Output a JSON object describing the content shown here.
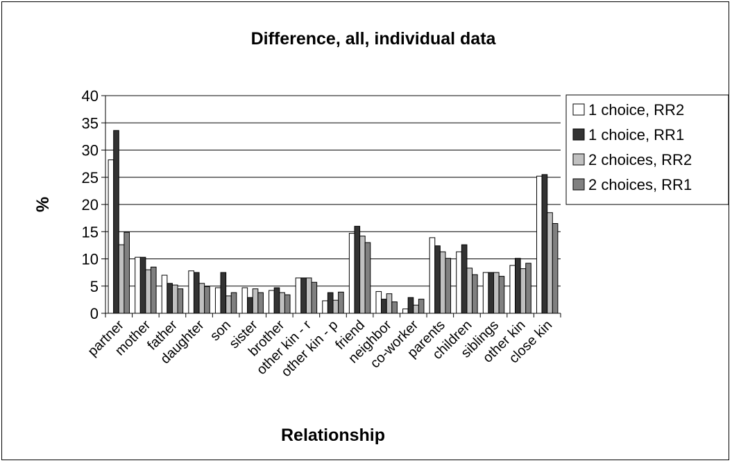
{
  "chart_data": {
    "type": "bar",
    "title": "Difference, all, individual data",
    "xlabel": "Relationship",
    "ylabel": "%",
    "ylim": [
      0,
      40
    ],
    "yticks": [
      0,
      5,
      10,
      15,
      20,
      25,
      30,
      35,
      40
    ],
    "grid": true,
    "legend_position": "right",
    "categories": [
      "partner",
      "mother",
      "father",
      "daughter",
      "son",
      "sister",
      "brother",
      "other kin - r",
      "other kin - p",
      "friend",
      "neighbor",
      "co-worker",
      "parents",
      "children",
      "siblings",
      "other kin",
      "close kin"
    ],
    "series": [
      {
        "name": "1 choice, RR2",
        "color": "#ffffff",
        "values": [
          28.2,
          10.3,
          7.0,
          7.8,
          4.7,
          4.7,
          4.2,
          6.5,
          2.3,
          14.7,
          4.0,
          0.8,
          13.9,
          11.3,
          7.5,
          8.8,
          25.2
        ]
      },
      {
        "name": "1 choice, RR1",
        "color": "#333333",
        "values": [
          33.6,
          10.3,
          5.5,
          7.5,
          7.5,
          2.9,
          4.7,
          6.5,
          3.8,
          16.0,
          2.6,
          2.9,
          12.4,
          12.6,
          7.5,
          10.1,
          25.5
        ]
      },
      {
        "name": "2 choices, RR2",
        "color": "#c0c0c0",
        "values": [
          12.6,
          8.0,
          5.2,
          5.5,
          3.2,
          4.5,
          3.8,
          6.5,
          2.4,
          14.2,
          3.6,
          1.5,
          11.3,
          8.3,
          7.5,
          8.2,
          18.5
        ]
      },
      {
        "name": "2 choices, RR1",
        "color": "#808080",
        "values": [
          14.9,
          8.5,
          4.5,
          4.9,
          3.8,
          3.8,
          3.4,
          5.7,
          3.9,
          13.0,
          2.1,
          2.6,
          10.1,
          7.1,
          6.8,
          9.2,
          16.5
        ]
      }
    ]
  }
}
